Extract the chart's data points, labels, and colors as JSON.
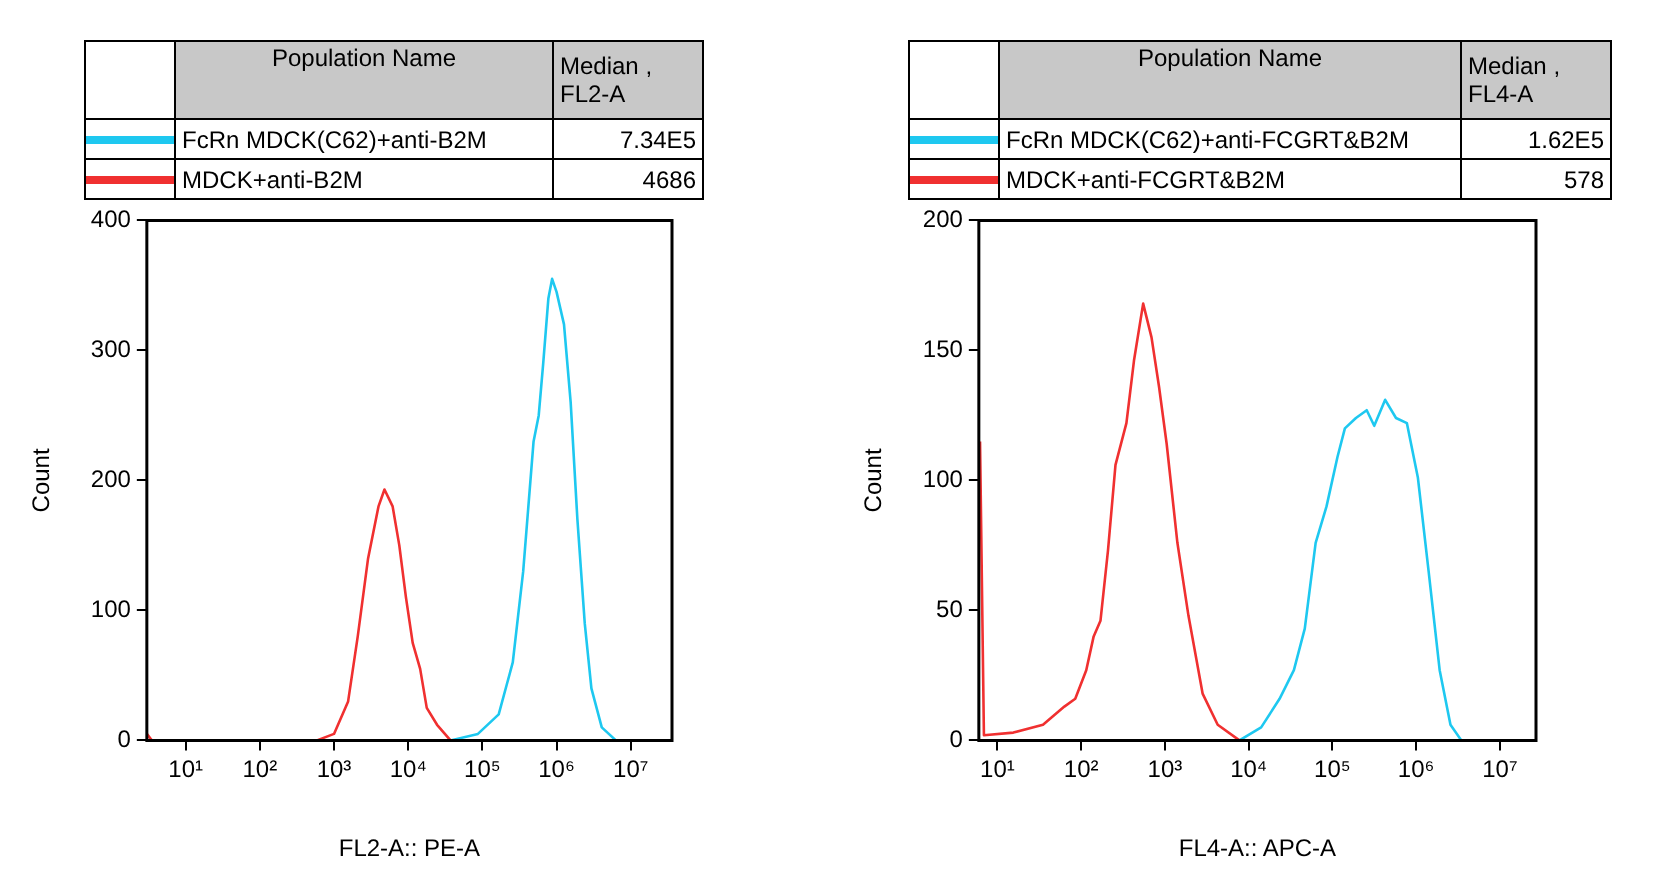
{
  "chart_data": [
    {
      "type": "line",
      "xlabel": "FL2-A:: PE-A",
      "ylabel": "Count",
      "legend_title": "Population Name",
      "annotations": [
        "Median , FL2-A",
        "7.34E5",
        "4686"
      ],
      "legend": "top",
      "grid": false,
      "marker": "none",
      "line_style": "solid",
      "log": "x",
      "xlim": [
        3,
        36000000
      ],
      "xticks": [
        {
          "value": 10,
          "label": "10¹"
        },
        {
          "value": 100,
          "label": "10²"
        },
        {
          "value": 1000,
          "label": "10³"
        },
        {
          "value": 10000,
          "label": "10⁴"
        },
        {
          "value": 100000,
          "label": "10⁵"
        },
        {
          "value": 1000000,
          "label": "10⁶"
        },
        {
          "value": 10000000,
          "label": "10⁷"
        }
      ],
      "ylim": [
        0,
        400
      ],
      "yticks": [
        0,
        100,
        200,
        300,
        400
      ],
      "series": [
        {
          "name": "FcRn MDCK(C62)+anti-B2M",
          "color": "#1ec8f0",
          "x": [
            3,
            37200,
            87100,
            166000,
            257000,
            355000,
            490000,
            575000,
            661000,
            776000,
            871000,
            1000000,
            1260000,
            1550000,
            1910000,
            2400000,
            2950000,
            4070000,
            6310000
          ],
          "values": [
            0,
            0,
            5,
            20,
            60,
            130,
            230,
            250,
            290,
            340,
            355,
            345,
            320,
            260,
            170,
            90,
            40,
            10,
            0
          ]
        },
        {
          "name": "MDCK+anti-B2M",
          "color": "#f03030",
          "x": [
            3,
            3.5,
            589,
            1000,
            1550,
            2090,
            2880,
            3980,
            4790,
            6170,
            7590,
            9330,
            11500,
            14500,
            17800,
            24500,
            37200
          ],
          "values": [
            5,
            0,
            0,
            5,
            30,
            80,
            140,
            180,
            193,
            180,
            150,
            110,
            75,
            55,
            25,
            12,
            0
          ]
        }
      ]
    },
    {
      "type": "line",
      "xlabel": "FL4-A:: APC-A",
      "ylabel": "Count",
      "legend_title": "Population Name",
      "annotations": [
        "Median , FL4-A",
        "1.62E5",
        "578"
      ],
      "legend": "top",
      "grid": false,
      "marker": "none",
      "line_style": "solid",
      "log": "x",
      "xlim": [
        6,
        27000000
      ],
      "xticks": [
        {
          "value": 10,
          "label": "10¹"
        },
        {
          "value": 100,
          "label": "10²"
        },
        {
          "value": 1000,
          "label": "10³"
        },
        {
          "value": 10000,
          "label": "10⁴"
        },
        {
          "value": 100000,
          "label": "10⁵"
        },
        {
          "value": 1000000,
          "label": "10⁶"
        },
        {
          "value": 10000000,
          "label": "10⁷"
        }
      ],
      "ylim": [
        0,
        200
      ],
      "yticks": [
        0,
        50,
        100,
        150,
        200
      ],
      "series": [
        {
          "name": "FcRn MDCK(C62)+anti-FCGRT&B2M",
          "color": "#1ec8f0",
          "x": [
            7760,
            14100,
            23400,
            34700,
            46800,
            63100,
            85100,
            115000,
            141000,
            191000,
            257000,
            316000,
            427000,
            575000,
            776000,
            1050000,
            1410000,
            1910000,
            2570000,
            3470000
          ],
          "values": [
            0,
            5,
            16,
            27,
            43,
            76,
            90,
            109,
            120,
            124,
            127,
            121,
            131,
            124,
            122,
            101,
            65,
            27,
            6,
            0
          ]
        },
        {
          "name": "MDCK+anti-FCGRT&B2M",
          "color": "#f03030",
          "x": [
            6.2,
            6.9,
            15.5,
            35,
            63,
            85,
            115,
            141,
            170,
            209,
            257,
            347,
            427,
            550,
            692,
            851,
            1050,
            1410,
            1910,
            2820,
            4270,
            7760
          ],
          "values": [
            115,
            2,
            3,
            6,
            13,
            16,
            27,
            40,
            46,
            73,
            106,
            122,
            146,
            168,
            155,
            136,
            114,
            76,
            48,
            18,
            6,
            0
          ]
        }
      ]
    }
  ]
}
